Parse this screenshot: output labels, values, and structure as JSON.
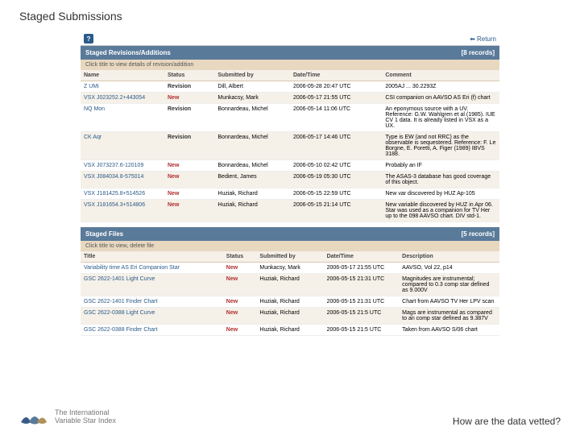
{
  "page": {
    "title": "Staged Submissions",
    "return": "Return"
  },
  "revisions": {
    "header": "Staged Revisions/Additions",
    "count": "[8 records]",
    "sub": "Click title to view details of revision/addition",
    "cols": {
      "name": "Name",
      "status": "Status",
      "submitted": "Submitted by",
      "date": "Date/Time",
      "comment": "Comment"
    },
    "rows": [
      {
        "name": "Z UMi",
        "status": "Revision",
        "status_class": "status-rev",
        "sub": "Dill, Albert",
        "date": "2006-05-28 20:47 UTC",
        "comment": "2005AJ ... 30.2293Z"
      },
      {
        "name": "VSX J023252.2+443054",
        "status": "New",
        "status_class": "status-new",
        "sub": "Munkacsy, Mark",
        "date": "2006-05-17 21:55 UTC",
        "comment": "CSI companion on AAVSO AS Eri (f) chart"
      },
      {
        "name": "NQ Mon",
        "status": "Revision",
        "status_class": "status-rev",
        "sub": "Bonnardeau, Michel",
        "date": "2006-05-14 11:06 UTC",
        "comment": "An eponymous source with a UV. Reference: G.W. Wahlgren et al (1985). IUE CV 1 data. It is already listed in VSX as a UX."
      },
      {
        "name": "CK Aqr",
        "status": "Revision",
        "status_class": "status-rev",
        "sub": "Bonnardeau, Michel",
        "date": "2006-05-17 14:46 UTC",
        "comment": "Type is EW (and not RRC) as the observable is sequestered. Reference: F. Le Borgne, E. Poretti, A. Figer (1989) IBVS 3188."
      },
      {
        "name": "VSX J073237.6-120109",
        "status": "New",
        "status_class": "status-new",
        "sub": "Bonnardeau, Michel",
        "date": "2006-05-10 02:42 UTC",
        "comment": "Probably an IF"
      },
      {
        "name": "VSX J084034.8-575014",
        "status": "New",
        "status_class": "status-new",
        "sub": "Bedient, James",
        "date": "2006-05-19 05:30 UTC",
        "comment": "The ASAS-3 database has good coverage of this object."
      },
      {
        "name": "VSX J181425.8+514526",
        "status": "New",
        "status_class": "status-new",
        "sub": "Huziak, Richard",
        "date": "2006-05-15 22:59 UTC",
        "comment": "New var discovered by HUZ Ap-105"
      },
      {
        "name": "VSX J181654.3+514806",
        "status": "New",
        "status_class": "status-new",
        "sub": "Huziak, Richard",
        "date": "2006-05-15 21:14 UTC",
        "comment": "New variable discovered by HUZ in Apr 06. Star was used as a companion for TV Her up to the 098 AAVSO chart. DIV std-1."
      }
    ]
  },
  "files": {
    "header": "Staged Files",
    "count": "[5 records]",
    "sub": "Click title to view, delete file",
    "cols": {
      "title": "Title",
      "status": "Status",
      "submitted": "Submitted by",
      "date": "Date/Time",
      "desc": "Description"
    },
    "rows": [
      {
        "title": "Variability time AS Eri Companion Star",
        "status": "New",
        "status_class": "status-new",
        "sub": "Munkacsy, Mark",
        "date": "2006-05-17 21:55 UTC",
        "desc": "AAVSO, Vol 22, p14"
      },
      {
        "title": "GSC 2622-1401 Light Curve",
        "status": "New",
        "status_class": "status-new",
        "sub": "Huziak, Richard",
        "date": "2006-05-15 21:31 UTC",
        "desc": "Magnitudes are instrumental; compared to 0.3 comp star defined as 9.000V"
      },
      {
        "title": "GSC 2622-1401 Finder Chart",
        "status": "New",
        "status_class": "status-new",
        "sub": "Huziak, Richard",
        "date": "2006-05-15 21:31 UTC",
        "desc": "Chart from AAVSO TV Her LPV scan"
      },
      {
        "title": "GSC 2622-0388 Light Curve",
        "status": "New",
        "status_class": "status-new",
        "sub": "Huziak, Richard",
        "date": "2006-05-15 21:5 UTC",
        "desc": "Mags are instrumental as compared to an comp star defined as 9.387V"
      },
      {
        "title": "GSC 2622-0388 Finder Chart",
        "status": "New",
        "status_class": "status-new",
        "sub": "Huziak, Richard",
        "date": "2006-05-15 21:5 UTC",
        "desc": "Taken from AAVSO S/06 chart"
      }
    ]
  },
  "footer": {
    "brand1": "The International",
    "brand2": "Variable Star Index",
    "question": "How are the data vetted?"
  }
}
